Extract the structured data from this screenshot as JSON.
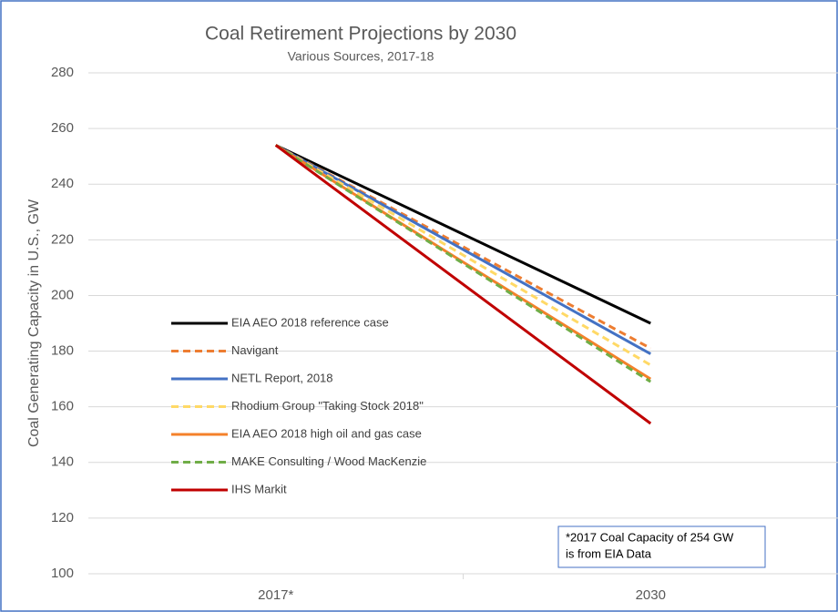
{
  "chart_data": {
    "type": "line",
    "title": "Coal Retirement Projections by 2030",
    "subtitle": "Various Sources, 2017-18",
    "y_label": "Coal Generating Capacity in U.S., GW",
    "categories": [
      "2017*",
      "2030"
    ],
    "series": [
      {
        "name": "EIA AEO 2018 reference case",
        "color": "#000000",
        "dashed": false,
        "values": [
          254,
          190
        ]
      },
      {
        "name": "Navigant",
        "color": "#ed7d31",
        "dashed": true,
        "values": [
          254,
          181
        ]
      },
      {
        "name": "NETL Report, 2018",
        "color": "#4472c4",
        "dashed": false,
        "values": [
          254,
          179
        ]
      },
      {
        "name": "Rhodium Group \"Taking Stock 2018\"",
        "color": "#ffd966",
        "dashed": true,
        "values": [
          254,
          175
        ]
      },
      {
        "name": "EIA AEO 2018 high oil and gas case",
        "color": "#f4812a",
        "dashed": false,
        "values": [
          254,
          170
        ]
      },
      {
        "name": "MAKE Consulting / Wood MacKenzie",
        "color": "#70ad47",
        "dashed": true,
        "values": [
          254,
          169
        ]
      },
      {
        "name": "IHS Markit",
        "color": "#c00000",
        "dashed": false,
        "values": [
          254,
          154
        ]
      }
    ],
    "ylim": [
      100,
      280
    ],
    "yticks": [
      100,
      120,
      140,
      160,
      180,
      200,
      220,
      240,
      260,
      280
    ],
    "grid": true,
    "legend": "left",
    "annotation": [
      "*2017 Coal Capacity of 254 GW",
      "is from EIA Data"
    ]
  }
}
